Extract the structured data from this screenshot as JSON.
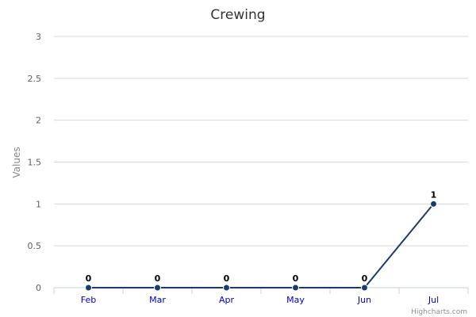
{
  "chart_data": {
    "type": "line",
    "title": "Crewing",
    "xlabel": "",
    "ylabel": "Values",
    "categories": [
      "Feb",
      "Mar",
      "Apr",
      "May",
      "Jun",
      "Jul"
    ],
    "series": [
      {
        "values": [
          0,
          0,
          0,
          0,
          0,
          1
        ],
        "color": "#1a3b6e"
      }
    ],
    "ylim": [
      0,
      3
    ],
    "yticks": [
      "0",
      "0.5",
      "1",
      "1.5",
      "2",
      "2.5",
      "3"
    ],
    "data_labels": [
      "0",
      "0",
      "0",
      "0",
      "0",
      "1"
    ],
    "grid": true,
    "legend": "none"
  },
  "credits": "Highcharts.com"
}
